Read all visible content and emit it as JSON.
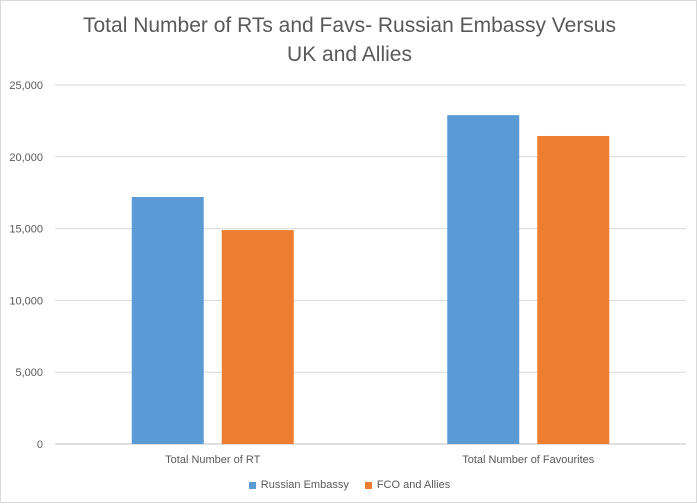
{
  "chart_data": {
    "type": "bar",
    "title_lines": [
      "Total Number of RTs and Favs- Russian Embassy Versus",
      "UK and Allies"
    ],
    "categories": [
      "Total Number of RT",
      "Total Number of Favourites"
    ],
    "series": [
      {
        "name": "Russian Embassy",
        "color": "#5b9bd5",
        "values": [
          17200,
          22900
        ]
      },
      {
        "name": "FCO and Allies",
        "color": "#ed7d31",
        "values": [
          14900,
          21450
        ]
      }
    ],
    "y_ticks": [
      "0",
      "5,000",
      "10,000",
      "15,000",
      "20,000",
      "25,000"
    ],
    "ylim": [
      0,
      25000
    ],
    "grid": true,
    "legend_position": "bottom"
  }
}
